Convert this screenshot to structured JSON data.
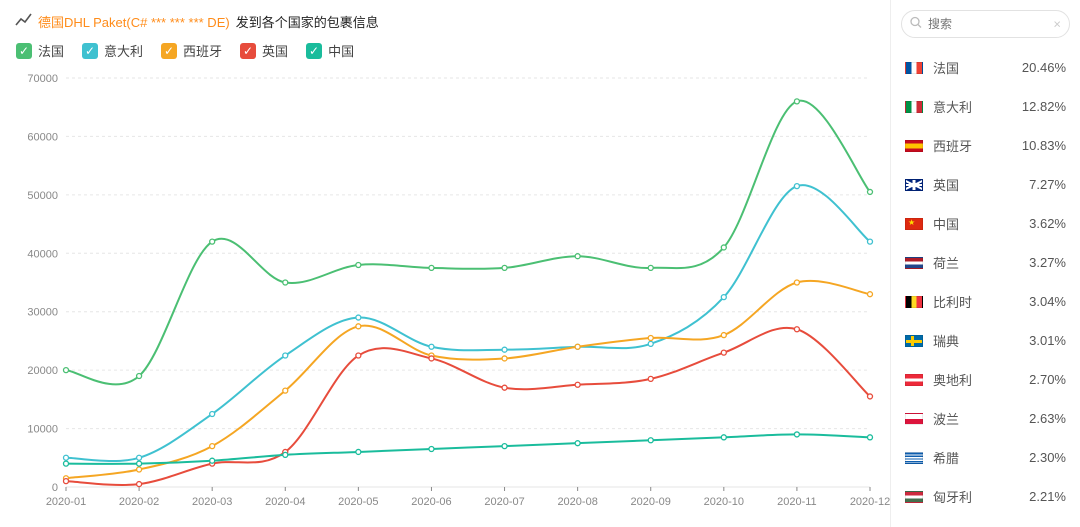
{
  "title": {
    "brand": "德国DHL Paket(C# *** *** *** DE)",
    "suffix": "发到各个国家的包裹信息"
  },
  "search": {
    "placeholder": "搜索"
  },
  "chart": {
    "type": "line",
    "x_labels": [
      "2020-01",
      "2020-02",
      "2020-03",
      "2020-04",
      "2020-05",
      "2020-06",
      "2020-07",
      "2020-08",
      "2020-09",
      "2020-10",
      "2020-11",
      "2020-12"
    ],
    "ylim": [
      0,
      70000
    ],
    "ytick_step": 10000,
    "background": "#ffffff",
    "grid_color": "#e6e6e6",
    "axis_label_color": "#888888",
    "axis_label_fontsize": 11,
    "line_width": 2,
    "marker": {
      "style": "circle",
      "radius": 2.5,
      "fill": "#ffffff",
      "stroke_width": 1.3
    },
    "smooth": true,
    "series": [
      {
        "name": "法国",
        "color": "#4bbf73",
        "values": [
          20000,
          19000,
          42000,
          35000,
          38000,
          37500,
          37500,
          39500,
          37500,
          41000,
          66000,
          50500
        ]
      },
      {
        "name": "意大利",
        "color": "#3fc1d0",
        "values": [
          5000,
          5000,
          12500,
          22500,
          29000,
          24000,
          23500,
          24000,
          24500,
          32500,
          51500,
          42000
        ]
      },
      {
        "name": "西班牙",
        "color": "#f5a623",
        "values": [
          1500,
          3000,
          7000,
          16500,
          27500,
          22500,
          22000,
          24000,
          25500,
          26000,
          35000,
          33000
        ]
      },
      {
        "name": "英国",
        "color": "#e74c3c",
        "values": [
          1000,
          500,
          4000,
          6000,
          22500,
          22000,
          17000,
          17500,
          18500,
          23000,
          27000,
          15500
        ]
      },
      {
        "name": "中国",
        "color": "#1abc9c",
        "values": [
          4000,
          4000,
          4500,
          5500,
          6000,
          6500,
          7000,
          7500,
          8000,
          8500,
          9000,
          8500
        ]
      }
    ]
  },
  "countries": [
    {
      "name": "法国",
      "pct": "20.46%",
      "flag": "fr"
    },
    {
      "name": "意大利",
      "pct": "12.82%",
      "flag": "it"
    },
    {
      "name": "西班牙",
      "pct": "10.83%",
      "flag": "es"
    },
    {
      "name": "英国",
      "pct": "7.27%",
      "flag": "gb"
    },
    {
      "name": "中国",
      "pct": "3.62%",
      "flag": "cn"
    },
    {
      "name": "荷兰",
      "pct": "3.27%",
      "flag": "nl"
    },
    {
      "name": "比利时",
      "pct": "3.04%",
      "flag": "be"
    },
    {
      "name": "瑞典",
      "pct": "3.01%",
      "flag": "se"
    },
    {
      "name": "奥地利",
      "pct": "2.70%",
      "flag": "at"
    },
    {
      "name": "波兰",
      "pct": "2.63%",
      "flag": "pl"
    },
    {
      "name": "希腊",
      "pct": "2.30%",
      "flag": "gr"
    },
    {
      "name": "匈牙利",
      "pct": "2.21%",
      "flag": "hu"
    }
  ]
}
